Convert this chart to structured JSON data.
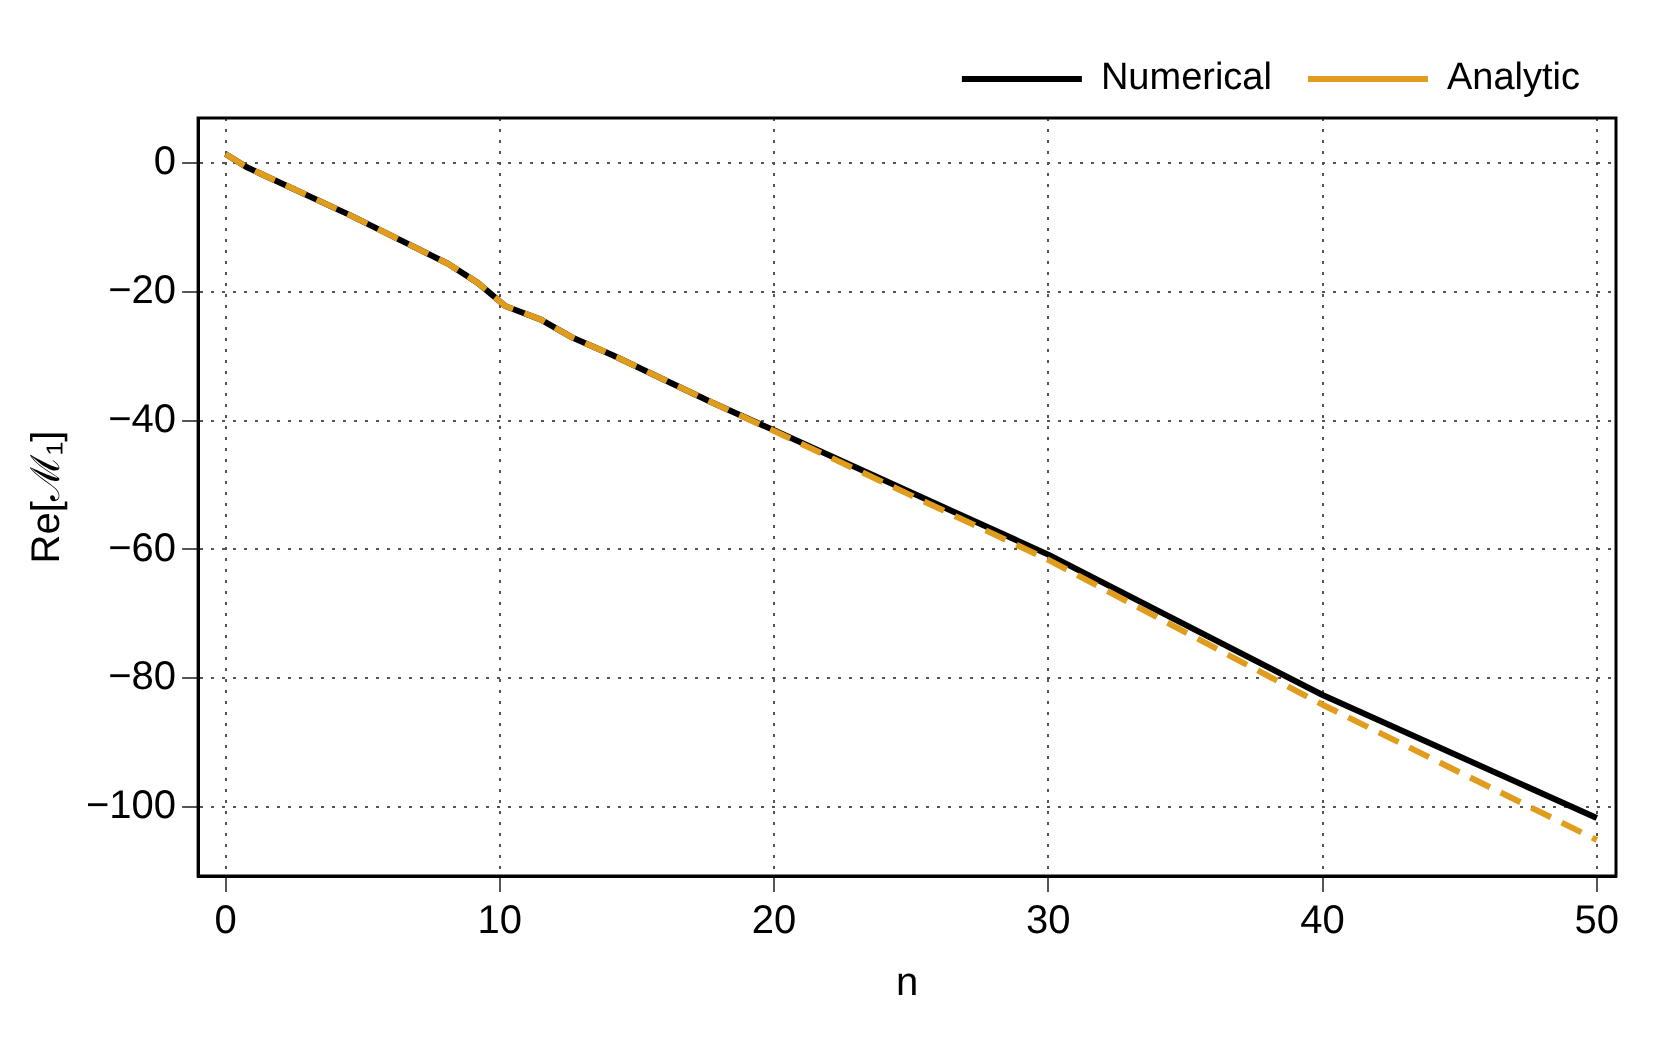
{
  "chart_data": {
    "type": "line",
    "xlabel": "n",
    "ylabel": "Re[ℳ₁]",
    "xlim": [
      -1,
      50.7
    ],
    "ylim": [
      -110.7,
      7
    ],
    "xticks": [
      0,
      10,
      20,
      30,
      40,
      50
    ],
    "yticks": [
      0,
      -20,
      -40,
      -60,
      -80,
      -100
    ],
    "grid": true,
    "legend": "top right",
    "marker": "none",
    "series": [
      {
        "name": "Numerical",
        "color": "#000000",
        "line_style": "solid",
        "x": [
          0,
          0.8,
          4.5,
          8.1,
          9.2,
          10.2,
          11.5,
          12.6,
          14.1,
          17.7,
          20,
          30,
          40,
          50
        ],
        "values": [
          1.4,
          -0.7,
          -8.0,
          -15.6,
          -18.6,
          -22.2,
          -24.3,
          -27.0,
          -29.8,
          -37.1,
          -41.5,
          -60.8,
          -82.6,
          -101.7
        ]
      },
      {
        "name": "Analytic",
        "color": "#e09d1d",
        "line_style": "dashed",
        "x": [
          0,
          0.8,
          4.5,
          8.1,
          9.2,
          10.2,
          11.5,
          12.6,
          14.1,
          17.7,
          20,
          30,
          40,
          50
        ],
        "values": [
          1.4,
          -0.7,
          -8.0,
          -15.6,
          -18.6,
          -22.2,
          -24.3,
          -27.0,
          -29.8,
          -37.1,
          -41.6,
          -61.6,
          -84.1,
          -105.1
        ]
      }
    ]
  }
}
